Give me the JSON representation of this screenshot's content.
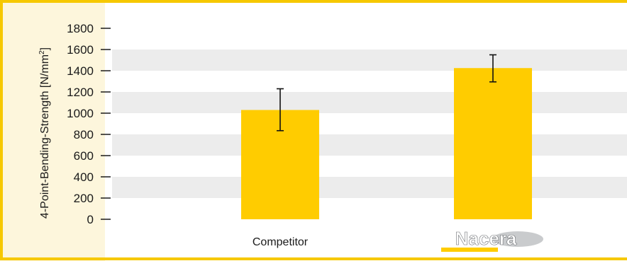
{
  "chart_data": {
    "type": "bar",
    "ylabel": "4-Point-Bending-Strength [N/mm",
    "ylabel_sup": "2",
    "ylabel_tail": "]",
    "ylim": [
      0,
      1800
    ],
    "yticks": [
      0,
      200,
      400,
      600,
      800,
      1000,
      1200,
      1400,
      1600,
      1800
    ],
    "grid": "alternating horizontal bands",
    "categories": [
      "Competitor",
      "Nacera"
    ],
    "series": [
      {
        "values": [
          1030,
          1425
        ],
        "error_low": [
          835,
          1295
        ],
        "error_high": [
          1230,
          1550
        ]
      }
    ]
  },
  "colors": {
    "border": "#f6c800",
    "left_panel": "#fdf6dc",
    "band": "#ececec",
    "bar": "#ffcc00",
    "logo_dark": "#8a8d91",
    "logo_light": "#c9cbcd"
  },
  "logo": {
    "text": "Nacera",
    "icon": "nacera-logo"
  }
}
